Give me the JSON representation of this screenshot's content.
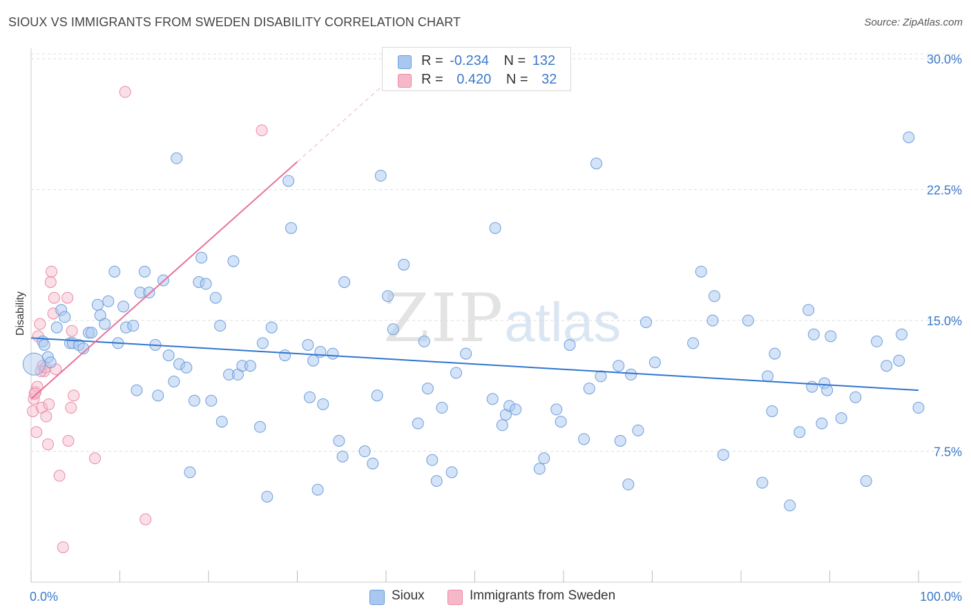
{
  "header": {
    "title": "SIOUX VS IMMIGRANTS FROM SWEDEN DISABILITY CORRELATION CHART",
    "source": "Source: ZipAtlas.com"
  },
  "watermark": {
    "zip": "ZIP",
    "atlas": "atlas"
  },
  "legend": {
    "rows": [
      {
        "r_label": "R =",
        "r_value": "-0.234",
        "n_label": "N =",
        "n_value": "132",
        "color": "#a9c8ef"
      },
      {
        "r_label": "R =",
        "r_value": "0.420",
        "n_label": "N =",
        "n_value": "32",
        "color": "#f6b8c9"
      }
    ]
  },
  "bottom_legend": [
    {
      "label": "Sioux",
      "color": "#a9c8ef"
    },
    {
      "label": "Immigrants from Sweden",
      "color": "#f6b8c9"
    }
  ],
  "colors": {
    "blue_fill": "#a9c8ef",
    "blue_stroke": "#6a9edb",
    "blue_line": "#2f74cf",
    "pink_fill": "#f6b8c9",
    "pink_stroke": "#e889a6",
    "pink_line": "#e8709a",
    "axis_text": "#3a78c8",
    "grid": "#dddddd"
  },
  "chart_data": {
    "type": "scatter",
    "title": "SIOUX VS IMMIGRANTS FROM SWEDEN DISABILITY CORRELATION CHART",
    "xlabel": "",
    "ylabel": "Disability",
    "xlim": [
      0,
      100
    ],
    "ylim": [
      0,
      30.6
    ],
    "x_tick_labels": [
      "0.0%",
      "100.0%"
    ],
    "y_ticks": [
      7.5,
      15.0,
      22.5,
      30.0
    ],
    "y_tick_labels": [
      "7.5%",
      "15.0%",
      "22.5%",
      "30.0%"
    ],
    "grid": true,
    "series": [
      {
        "name": "Sioux",
        "r": -0.234,
        "n": 132,
        "trend": {
          "x": [
            0,
            100
          ],
          "y": [
            14.0,
            11.0
          ]
        },
        "points": [
          [
            0.5,
            12.5
          ],
          [
            1.3,
            13.8
          ],
          [
            1.5,
            13.6
          ],
          [
            1.9,
            12.9
          ],
          [
            2.2,
            12.6
          ],
          [
            2.9,
            14.6
          ],
          [
            3.4,
            15.6
          ],
          [
            3.8,
            15.2
          ],
          [
            4.4,
            13.7
          ],
          [
            4.7,
            13.7
          ],
          [
            5.4,
            13.6
          ],
          [
            5.9,
            13.4
          ],
          [
            6.5,
            14.3
          ],
          [
            6.8,
            14.3
          ],
          [
            7.5,
            15.9
          ],
          [
            7.8,
            15.3
          ],
          [
            8.3,
            14.8
          ],
          [
            8.7,
            16.1
          ],
          [
            9.4,
            17.8
          ],
          [
            9.8,
            13.7
          ],
          [
            10.4,
            15.8
          ],
          [
            10.7,
            14.6
          ],
          [
            11.5,
            14.7
          ],
          [
            11.9,
            11.0
          ],
          [
            12.3,
            16.6
          ],
          [
            12.8,
            17.8
          ],
          [
            13.3,
            16.6
          ],
          [
            14.0,
            13.6
          ],
          [
            14.3,
            10.7
          ],
          [
            14.9,
            17.3
          ],
          [
            15.5,
            13.0
          ],
          [
            16.1,
            11.5
          ],
          [
            16.4,
            24.3
          ],
          [
            16.7,
            12.5
          ],
          [
            17.5,
            12.3
          ],
          [
            17.9,
            6.3
          ],
          [
            18.4,
            10.4
          ],
          [
            18.9,
            17.2
          ],
          [
            19.2,
            18.6
          ],
          [
            19.7,
            17.1
          ],
          [
            20.3,
            10.4
          ],
          [
            20.8,
            16.3
          ],
          [
            21.3,
            14.7
          ],
          [
            21.5,
            9.2
          ],
          [
            22.3,
            11.9
          ],
          [
            22.8,
            18.4
          ],
          [
            23.3,
            11.9
          ],
          [
            23.8,
            12.4
          ],
          [
            24.7,
            12.4
          ],
          [
            25.8,
            8.9
          ],
          [
            26.1,
            13.7
          ],
          [
            26.6,
            4.9
          ],
          [
            27.1,
            14.6
          ],
          [
            28.6,
            13.0
          ],
          [
            29.0,
            23.0
          ],
          [
            29.3,
            20.3
          ],
          [
            31.2,
            13.6
          ],
          [
            31.4,
            10.6
          ],
          [
            31.8,
            12.7
          ],
          [
            32.3,
            5.3
          ],
          [
            32.6,
            13.2
          ],
          [
            32.9,
            10.2
          ],
          [
            34.0,
            13.1
          ],
          [
            34.7,
            8.1
          ],
          [
            35.1,
            7.2
          ],
          [
            35.3,
            17.2
          ],
          [
            37.6,
            7.5
          ],
          [
            38.5,
            6.8
          ],
          [
            39.0,
            10.7
          ],
          [
            39.4,
            23.3
          ],
          [
            40.2,
            16.4
          ],
          [
            40.8,
            14.5
          ],
          [
            42.0,
            18.2
          ],
          [
            43.6,
            9.1
          ],
          [
            44.3,
            13.8
          ],
          [
            44.7,
            11.1
          ],
          [
            45.2,
            7.0
          ],
          [
            45.7,
            5.8
          ],
          [
            46.3,
            10.0
          ],
          [
            47.4,
            6.3
          ],
          [
            47.9,
            12.0
          ],
          [
            49.0,
            13.1
          ],
          [
            52.0,
            10.5
          ],
          [
            52.3,
            20.3
          ],
          [
            53.1,
            9.0
          ],
          [
            53.5,
            9.6
          ],
          [
            53.9,
            10.1
          ],
          [
            54.6,
            9.9
          ],
          [
            57.3,
            6.5
          ],
          [
            57.8,
            7.1
          ],
          [
            59.2,
            9.9
          ],
          [
            59.7,
            9.2
          ],
          [
            60.7,
            13.6
          ],
          [
            62.3,
            8.2
          ],
          [
            62.9,
            11.1
          ],
          [
            63.7,
            24.0
          ],
          [
            64.2,
            11.8
          ],
          [
            66.2,
            12.4
          ],
          [
            66.4,
            8.1
          ],
          [
            67.3,
            5.6
          ],
          [
            67.6,
            11.9
          ],
          [
            68.4,
            8.7
          ],
          [
            69.3,
            14.9
          ],
          [
            70.3,
            12.6
          ],
          [
            74.6,
            13.7
          ],
          [
            75.5,
            17.8
          ],
          [
            77.0,
            16.4
          ],
          [
            76.8,
            15.0
          ],
          [
            78.0,
            7.3
          ],
          [
            80.8,
            15.0
          ],
          [
            82.4,
            5.7
          ],
          [
            83.0,
            11.8
          ],
          [
            83.5,
            9.8
          ],
          [
            83.8,
            13.1
          ],
          [
            85.5,
            4.4
          ],
          [
            86.6,
            8.6
          ],
          [
            87.6,
            15.6
          ],
          [
            88.0,
            11.2
          ],
          [
            88.2,
            14.2
          ],
          [
            89.1,
            9.1
          ],
          [
            89.4,
            11.4
          ],
          [
            89.7,
            11.0
          ],
          [
            90.1,
            14.1
          ],
          [
            91.3,
            9.4
          ],
          [
            92.9,
            10.6
          ],
          [
            94.1,
            5.8
          ],
          [
            95.3,
            13.8
          ],
          [
            96.4,
            12.4
          ],
          [
            97.8,
            12.7
          ],
          [
            98.1,
            14.2
          ],
          [
            98.9,
            25.5
          ],
          [
            100.0,
            10.0
          ]
        ]
      },
      {
        "name": "Immigrants from Sweden",
        "r": 0.42,
        "n": 32,
        "trend": {
          "x": [
            0,
            30
          ],
          "y": [
            10.5,
            24.1
          ]
        },
        "points": [
          [
            0.2,
            9.8
          ],
          [
            0.3,
            10.5
          ],
          [
            0.5,
            10.9
          ],
          [
            0.6,
            8.6
          ],
          [
            0.7,
            11.2
          ],
          [
            0.8,
            14.1
          ],
          [
            1.0,
            14.8
          ],
          [
            1.2,
            10.0
          ],
          [
            1.3,
            12.4
          ],
          [
            1.5,
            12.1
          ],
          [
            1.7,
            9.5
          ],
          [
            1.9,
            7.9
          ],
          [
            2.0,
            10.2
          ],
          [
            2.2,
            17.2
          ],
          [
            2.3,
            17.8
          ],
          [
            2.5,
            15.4
          ],
          [
            2.6,
            16.3
          ],
          [
            2.8,
            12.2
          ],
          [
            3.2,
            6.1
          ],
          [
            3.6,
            2.0
          ],
          [
            4.1,
            16.3
          ],
          [
            4.2,
            8.1
          ],
          [
            4.5,
            10.0
          ],
          [
            4.6,
            14.4
          ],
          [
            4.8,
            10.7
          ],
          [
            7.2,
            7.1
          ],
          [
            10.6,
            28.1
          ],
          [
            12.9,
            3.6
          ],
          [
            26.0,
            25.9
          ],
          [
            0.4,
            10.8
          ],
          [
            1.1,
            12.1
          ],
          [
            1.6,
            12.3
          ]
        ]
      }
    ]
  }
}
